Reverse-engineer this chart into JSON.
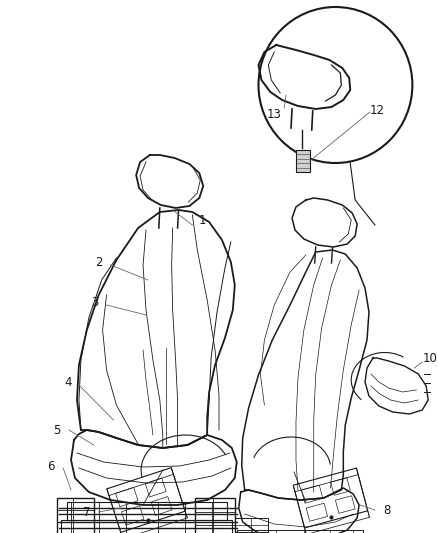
{
  "background_color": "#ffffff",
  "line_color": "#1a1a1a",
  "label_color": "#1a1a1a",
  "figure_width": 4.38,
  "figure_height": 5.33,
  "dpi": 100
}
